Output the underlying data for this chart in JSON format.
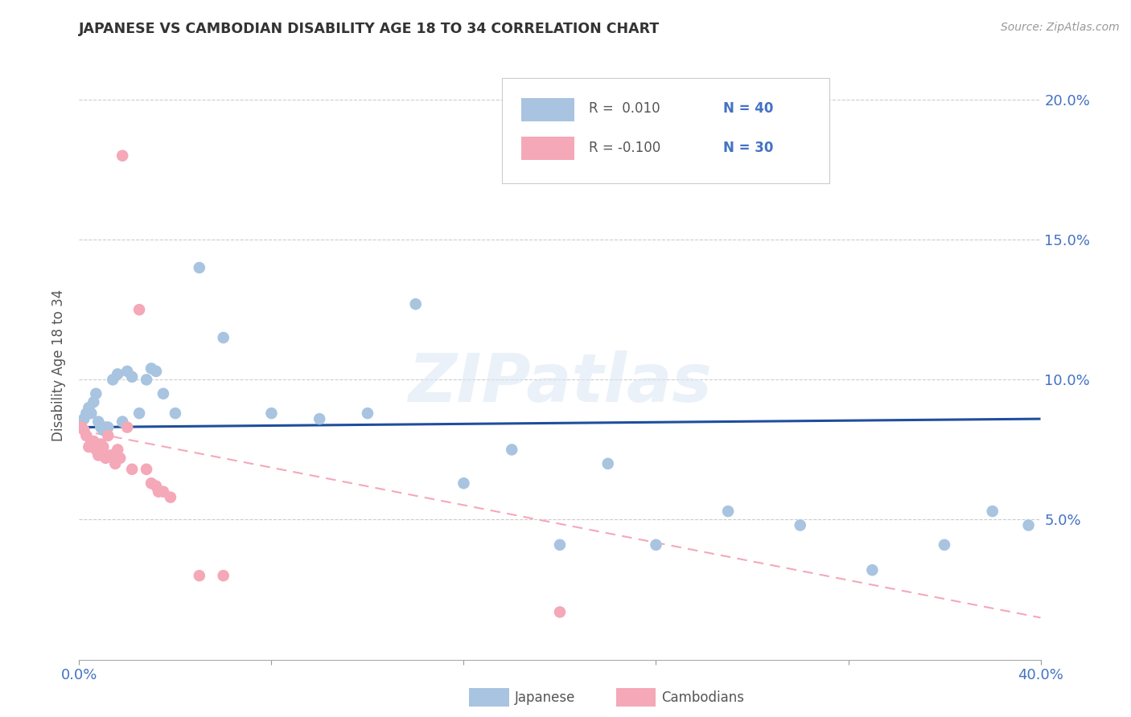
{
  "title": "JAPANESE VS CAMBODIAN DISABILITY AGE 18 TO 34 CORRELATION CHART",
  "source": "Source: ZipAtlas.com",
  "ylabel": "Disability Age 18 to 34",
  "xlim": [
    0.0,
    0.4
  ],
  "ylim": [
    0.0,
    0.21
  ],
  "xtick_positions": [
    0.0,
    0.08,
    0.16,
    0.24,
    0.32,
    0.4
  ],
  "xtick_labels": [
    "0.0%",
    "",
    "",
    "",
    "",
    "40.0%"
  ],
  "ytick_positions": [
    0.05,
    0.1,
    0.15,
    0.2
  ],
  "ytick_labels": [
    "5.0%",
    "10.0%",
    "15.0%",
    "20.0%"
  ],
  "japanese_color": "#a8c4e0",
  "cambodian_color": "#f4a8b8",
  "trendline_japanese_color": "#1f4e9c",
  "trendline_cambodian_color": "#f4a8b8",
  "legend_japanese_label_r": "R =  0.010",
  "legend_japanese_label_n": "N = 40",
  "legend_cambodian_label_r": "R = -0.100",
  "legend_cambodian_label_n": "N = 30",
  "watermark_text": "ZIPatlas",
  "japanese_x": [
    0.001,
    0.002,
    0.003,
    0.004,
    0.005,
    0.006,
    0.007,
    0.008,
    0.009,
    0.01,
    0.011,
    0.012,
    0.014,
    0.016,
    0.018,
    0.02,
    0.022,
    0.025,
    0.028,
    0.03,
    0.032,
    0.035,
    0.04,
    0.05,
    0.06,
    0.08,
    0.1,
    0.12,
    0.14,
    0.16,
    0.18,
    0.2,
    0.22,
    0.24,
    0.27,
    0.3,
    0.33,
    0.36,
    0.38,
    0.395
  ],
  "japanese_y": [
    0.083,
    0.086,
    0.088,
    0.09,
    0.088,
    0.092,
    0.095,
    0.085,
    0.083,
    0.082,
    0.083,
    0.083,
    0.1,
    0.102,
    0.085,
    0.103,
    0.101,
    0.088,
    0.1,
    0.104,
    0.103,
    0.095,
    0.088,
    0.14,
    0.115,
    0.088,
    0.086,
    0.088,
    0.127,
    0.063,
    0.075,
    0.041,
    0.07,
    0.041,
    0.053,
    0.048,
    0.032,
    0.041,
    0.053,
    0.048
  ],
  "cambodian_x": [
    0.001,
    0.002,
    0.003,
    0.004,
    0.005,
    0.006,
    0.007,
    0.008,
    0.009,
    0.01,
    0.011,
    0.012,
    0.013,
    0.014,
    0.015,
    0.016,
    0.017,
    0.018,
    0.02,
    0.022,
    0.025,
    0.028,
    0.03,
    0.032,
    0.033,
    0.035,
    0.038,
    0.05,
    0.06,
    0.2
  ],
  "cambodian_y": [
    0.083,
    0.082,
    0.08,
    0.076,
    0.078,
    0.078,
    0.075,
    0.073,
    0.077,
    0.076,
    0.072,
    0.08,
    0.073,
    0.073,
    0.07,
    0.075,
    0.072,
    0.18,
    0.083,
    0.068,
    0.125,
    0.068,
    0.063,
    0.062,
    0.06,
    0.06,
    0.058,
    0.03,
    0.03,
    0.017
  ],
  "jp_trend_x": [
    0.0,
    0.4
  ],
  "jp_trend_y": [
    0.083,
    0.086
  ],
  "cam_trend_x": [
    0.0,
    0.4
  ],
  "cam_trend_y": [
    0.082,
    0.015
  ]
}
